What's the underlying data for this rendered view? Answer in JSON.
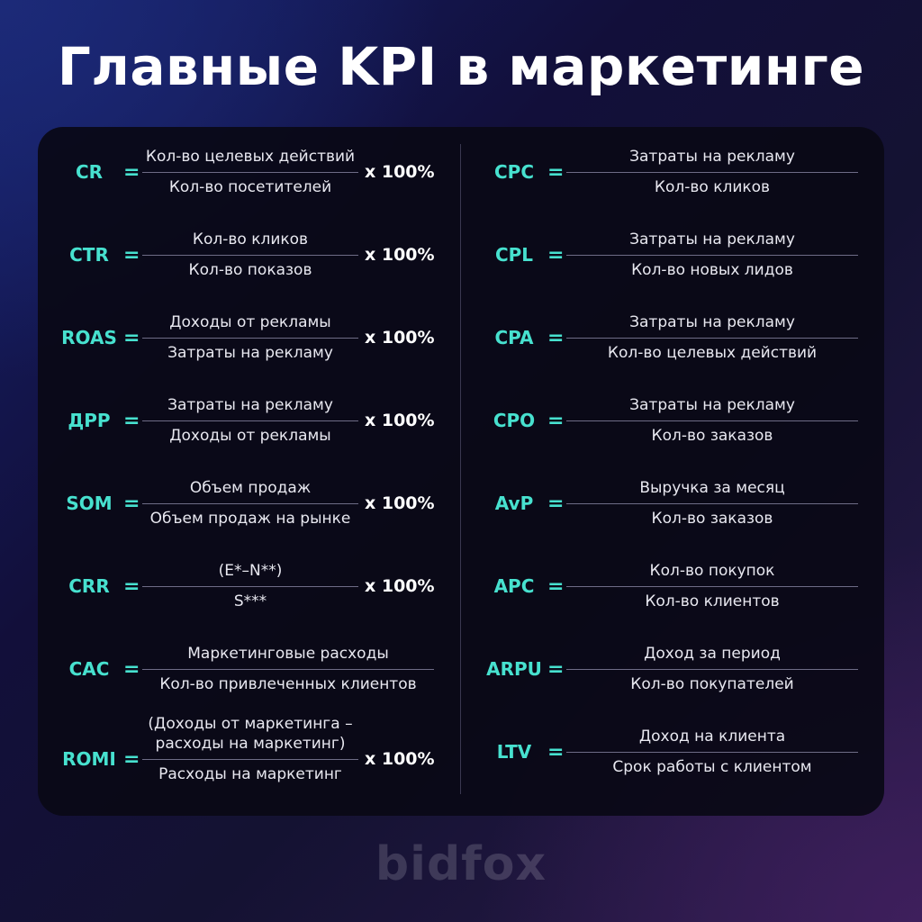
{
  "title": "Главные KPI в маркетинге",
  "brand": "bidfox",
  "colors": {
    "accent": "#47e1cf",
    "card": "#0a0916",
    "text": "#ffffff"
  },
  "left": [
    {
      "abbr": "CR",
      "eq": "=",
      "num": "Кол-во целевых действий",
      "den": "Кол-во посетителей",
      "mult": "x 100%"
    },
    {
      "abbr": "CTR",
      "eq": "=",
      "num": "Кол-во кликов",
      "den": "Кол-во показов",
      "mult": "x 100%"
    },
    {
      "abbr": "ROAS",
      "eq": "=",
      "num": "Доходы от рекламы",
      "den": "Затраты на рекламу",
      "mult": "x 100%"
    },
    {
      "abbr": "ДРР",
      "eq": "=",
      "num": "Затраты на рекламу",
      "den": "Доходы от рекламы",
      "mult": "x 100%"
    },
    {
      "abbr": "SOM",
      "eq": "=",
      "num": "Объем продаж",
      "den": "Объем продаж на рынке",
      "mult": "x 100%"
    },
    {
      "abbr": "CRR",
      "eq": "=",
      "num": "(E*–N**)",
      "den": "S***",
      "mult": "x 100%"
    },
    {
      "abbr": "CAC",
      "eq": "=",
      "num": "Маркетинговые расходы",
      "den": "Кол-во привлеченных клиентов",
      "mult": ""
    },
    {
      "abbr": "ROMI",
      "eq": "=",
      "num": "(Доходы от маркетинга –",
      "num2": "расходы на маркетинг)",
      "den": "Расходы на маркетинг",
      "mult": "x 100%"
    }
  ],
  "right": [
    {
      "abbr": "CPC",
      "eq": "=",
      "num": "Затраты на рекламу",
      "den": "Кол-во кликов"
    },
    {
      "abbr": "CPL",
      "eq": "=",
      "num": "Затраты на рекламу",
      "den": "Кол-во новых лидов"
    },
    {
      "abbr": "CPA",
      "eq": "=",
      "num": "Затраты на рекламу",
      "den": "Кол-во целевых действий"
    },
    {
      "abbr": "CPO",
      "eq": "=",
      "num": "Затраты на рекламу",
      "den": "Кол-во заказов"
    },
    {
      "abbr": "AvP",
      "eq": "=",
      "num": "Выручка за месяц",
      "den": "Кол-во заказов"
    },
    {
      "abbr": "APC",
      "eq": "=",
      "num": "Кол-во покупок",
      "den": "Кол-во клиентов"
    },
    {
      "abbr": "ARPU",
      "eq": "=",
      "num": "Доход за период",
      "den": "Кол-во покупателей"
    },
    {
      "abbr": "LTV",
      "eq": "=",
      "num": "Доход на клиента",
      "den": "Срок работы с клиентом"
    }
  ]
}
